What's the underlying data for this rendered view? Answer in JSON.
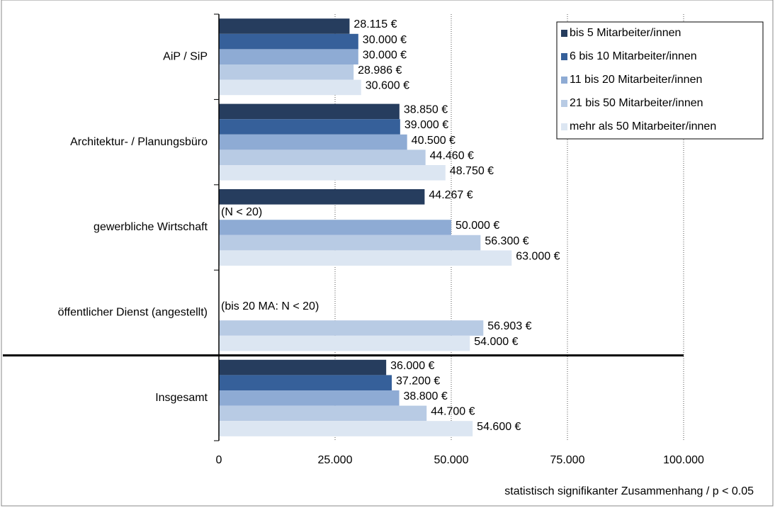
{
  "chart_data": {
    "type": "bar",
    "orientation": "horizontal",
    "categories": [
      "AiP / SiP",
      "Architektur- / Planungsbüro",
      "gewerbliche Wirtschaft",
      "öffentlicher Dienst (angestellt)",
      "Insgesamt"
    ],
    "series": [
      {
        "name": "bis 5 Mitarbeiter/innen",
        "color": "#263d5e",
        "values": [
          28115,
          38850,
          44267,
          null,
          36000
        ],
        "value_labels": [
          "28.115 €",
          "38.850 €",
          "44.267 €",
          null,
          "36.000 €"
        ]
      },
      {
        "name": "6 bis 10 Mitarbeiter/innen",
        "color": "#36609a",
        "values": [
          30000,
          39000,
          null,
          null,
          37200
        ],
        "value_labels": [
          "30.000 €",
          "39.000 €",
          null,
          null,
          "37.200 €"
        ]
      },
      {
        "name": "11 bis 20 Mitarbeiter/innen",
        "color": "#8eabd4",
        "values": [
          30000,
          40500,
          50000,
          null,
          38800
        ],
        "value_labels": [
          "30.000 €",
          "40.500 €",
          "50.000 €",
          null,
          "38.800 €"
        ]
      },
      {
        "name": "21 bis 50 Mitarbeiter/innen",
        "color": "#b8cbe4",
        "values": [
          28986,
          44460,
          56300,
          56903,
          44700
        ],
        "value_labels": [
          "28.986 €",
          "44.460 €",
          "56.300 €",
          "56.903 €",
          "44.700 €"
        ]
      },
      {
        "name": "mehr als 50 Mitarbeiter/innen",
        "color": "#dce6f2",
        "values": [
          30600,
          48750,
          63000,
          54000,
          54600
        ],
        "value_labels": [
          "30.600 €",
          "48.750 €",
          "63.000 €",
          "54.000 €",
          "54.600 €"
        ]
      }
    ],
    "xlim": [
      0,
      100000
    ],
    "xticks": [
      0,
      {
        "value": 25000,
        "label": "25.000"
      },
      {
        "value": 50000,
        "label": "50.000"
      },
      {
        "value": 75000,
        "label": "75.000"
      },
      {
        "value": 100000,
        "label": "100.000"
      }
    ],
    "grid": true,
    "legend": "upper right",
    "annotations": [
      "(N < 20)",
      "(bis 20 MA: N < 20)"
    ],
    "footnote": "statistisch signifikanter Zusammenhang / p < 0.05"
  }
}
